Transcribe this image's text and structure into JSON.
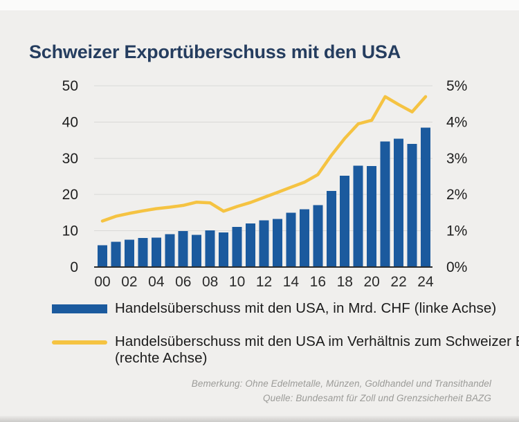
{
  "title": "Schweizer Exportüberschuss mit den USA",
  "colors": {
    "background": "#F0EFED",
    "bar": "#1B5A9E",
    "line": "#F5C342",
    "title_text": "#253D5F",
    "axis_text": "#1E1E1E",
    "x_axis_text": "#2A2A2A",
    "gridline": "#D9D8D6",
    "baseline": "#2B2B2B",
    "legend_text": "#1B1B1B",
    "footer_text": "#9B9B98"
  },
  "chart_data": {
    "type": "bar",
    "subtype": "bar+line dual axis",
    "years": [
      "00",
      "01",
      "02",
      "03",
      "04",
      "05",
      "06",
      "07",
      "08",
      "09",
      "10",
      "11",
      "12",
      "13",
      "14",
      "15",
      "16",
      "17",
      "18",
      "19",
      "20",
      "21",
      "22",
      "23",
      "24"
    ],
    "x_tick_labels": [
      "00",
      "02",
      "04",
      "06",
      "08",
      "10",
      "12",
      "14",
      "16",
      "18",
      "20",
      "22",
      "24"
    ],
    "left_axis": {
      "tick_labels": [
        "0",
        "10",
        "20",
        "30",
        "40",
        "50"
      ],
      "range": [
        0,
        50
      ]
    },
    "right_axis": {
      "tick_labels": [
        "0%",
        "1%",
        "2%",
        "3%",
        "4%",
        "5%"
      ],
      "range": [
        0,
        5
      ]
    },
    "grid": "horizontal only",
    "legend_position": "below chart",
    "series": [
      {
        "name": "Handelsüberschuss mit den USA, in Mrd. CHF (linke Achse)",
        "type": "bar",
        "axis": "left",
        "unit": "Mrd. CHF",
        "values": [
          6.0,
          7.0,
          7.5,
          8.0,
          8.1,
          9.1,
          9.9,
          8.9,
          10.1,
          9.5,
          11.1,
          12.0,
          12.9,
          13.3,
          15.0,
          15.9,
          17.1,
          21.0,
          25.2,
          28.0,
          27.9,
          34.6,
          35.4,
          34.0,
          38.5
        ]
      },
      {
        "name": "Handelsüberschuss mit den USA im Verhältnis zum Schweizer BIP (rechte Achse)",
        "type": "line",
        "axis": "right",
        "unit": "% des BIP",
        "values": [
          1.27,
          1.4,
          1.48,
          1.55,
          1.61,
          1.65,
          1.7,
          1.79,
          1.77,
          1.54,
          1.67,
          1.78,
          1.92,
          2.06,
          2.2,
          2.34,
          2.55,
          3.08,
          3.55,
          3.95,
          4.05,
          4.7,
          4.48,
          4.28,
          4.7
        ]
      }
    ]
  },
  "legend": [
    {
      "swatch": "blue-bar-swatch",
      "label": "Handelsüberschuss mit den USA, in Mrd. CHF (linke Achse)"
    },
    {
      "swatch": "yellow-line-swatch",
      "label": "Handelsüberschuss mit den USA im Verhältnis zum Schweizer BIP (rechte Achse)"
    }
  ],
  "footer": {
    "note": "Bemerkung: Ohne Edelmetalle, Münzen, Goldhandel und Transithandel",
    "source": "Quelle: Bundesamt für Zoll und Grenzsicherheit BAZG"
  }
}
